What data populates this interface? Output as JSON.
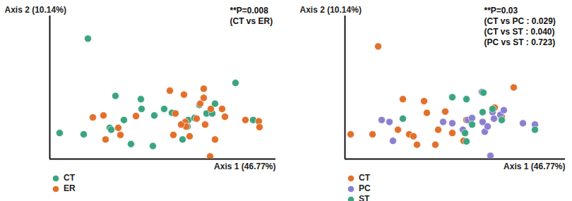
{
  "chart_data": [
    {
      "type": "scatter",
      "xlabel": "Axis 1 (46.77%)",
      "ylabel": "Axis 2 (10.14%)",
      "annotations": [
        "**P=0.008",
        "(CT vs ER)"
      ],
      "xlim": [
        0,
        320
      ],
      "ylim": [
        0,
        220
      ],
      "xticks": [],
      "yticks": [],
      "tick_labels": false,
      "legend": "bottom left",
      "series": [
        {
          "name": "CT",
          "color": "#3aa57f",
          "marker": "circle",
          "x": [
            54,
            14,
            48,
            85,
            87,
            93,
            105,
            115,
            129,
            130,
            148,
            146,
            162,
            173,
            188,
            195,
            196,
            205,
            212,
            222,
            230,
            234,
            263,
            288
          ],
          "y": [
            185,
            40,
            38,
            48,
            45,
            97,
            60,
            23,
            92,
            77,
            67,
            20,
            77,
            71,
            30,
            50,
            60,
            63,
            83,
            70,
            70,
            85,
            117,
            60
          ]
        },
        {
          "name": "ER",
          "color": "#e2702b",
          "marker": "circle",
          "x": [
            61,
            76,
            79,
            97,
            100,
            122,
            170,
            178,
            190,
            192,
            193,
            198,
            208,
            213,
            218,
            218,
            220,
            228,
            234,
            244,
            248,
            277,
            296,
            297,
            227,
            175,
            186
          ],
          "y": [
            64,
            67,
            30,
            48,
            37,
            66,
            105,
            70,
            99,
            57,
            50,
            35,
            62,
            85,
            108,
            94,
            53,
            77,
            30,
            77,
            65,
            60,
            58,
            49,
            4,
            37,
            53
          ]
        }
      ]
    },
    {
      "type": "scatter",
      "xlabel": "Axis 1 (46.77%)",
      "ylabel": "Axis 2 (10.14%)",
      "annotations": [
        "**P=0.03",
        "(CT vs PC : 0.029)",
        "(CT vs ST : 0.040)",
        "(PC vs ST : 0.723)"
      ],
      "xlim": [
        0,
        312
      ],
      "ylim": [
        0,
        220
      ],
      "xticks": [],
      "yticks": [],
      "tick_labels": false,
      "legend": "bottom left",
      "series": [
        {
          "name": "CT",
          "color": "#e2702b",
          "marker": "circle",
          "x": [
            47,
            8,
            39,
            82,
            75,
            91,
            102,
            112,
            116,
            128,
            142,
            152,
            168,
            172,
            212,
            222,
            239,
            97,
            132
          ],
          "y": [
            173,
            38,
            38,
            92,
            45,
            38,
            22,
            89,
            71,
            22,
            73,
            40,
            28,
            60,
            79,
            65,
            110,
            35,
            45
          ]
        },
        {
          "name": "PC",
          "color": "#8b80cf",
          "marker": "circle",
          "x": [
            52,
            68,
            63,
            139,
            152,
            174,
            180,
            195,
            198,
            209,
            211,
            220,
            225,
            252,
            269,
            206,
            194,
            167,
            202
          ],
          "y": [
            60,
            28,
            57,
            57,
            55,
            60,
            63,
            57,
            42,
            72,
            62,
            68,
            75,
            55,
            53,
            5,
            103,
            45,
            50
          ]
        },
        {
          "name": "ST",
          "color": "#3aa57f",
          "marker": "circle",
          "x": [
            82,
            152,
            172,
            196,
            195,
            170,
            180,
            209,
            222,
            269,
            172
          ],
          "y": [
            62,
            95,
            92,
            102,
            72,
            40,
            53,
            77,
            60,
            45,
            27
          ]
        }
      ]
    }
  ]
}
